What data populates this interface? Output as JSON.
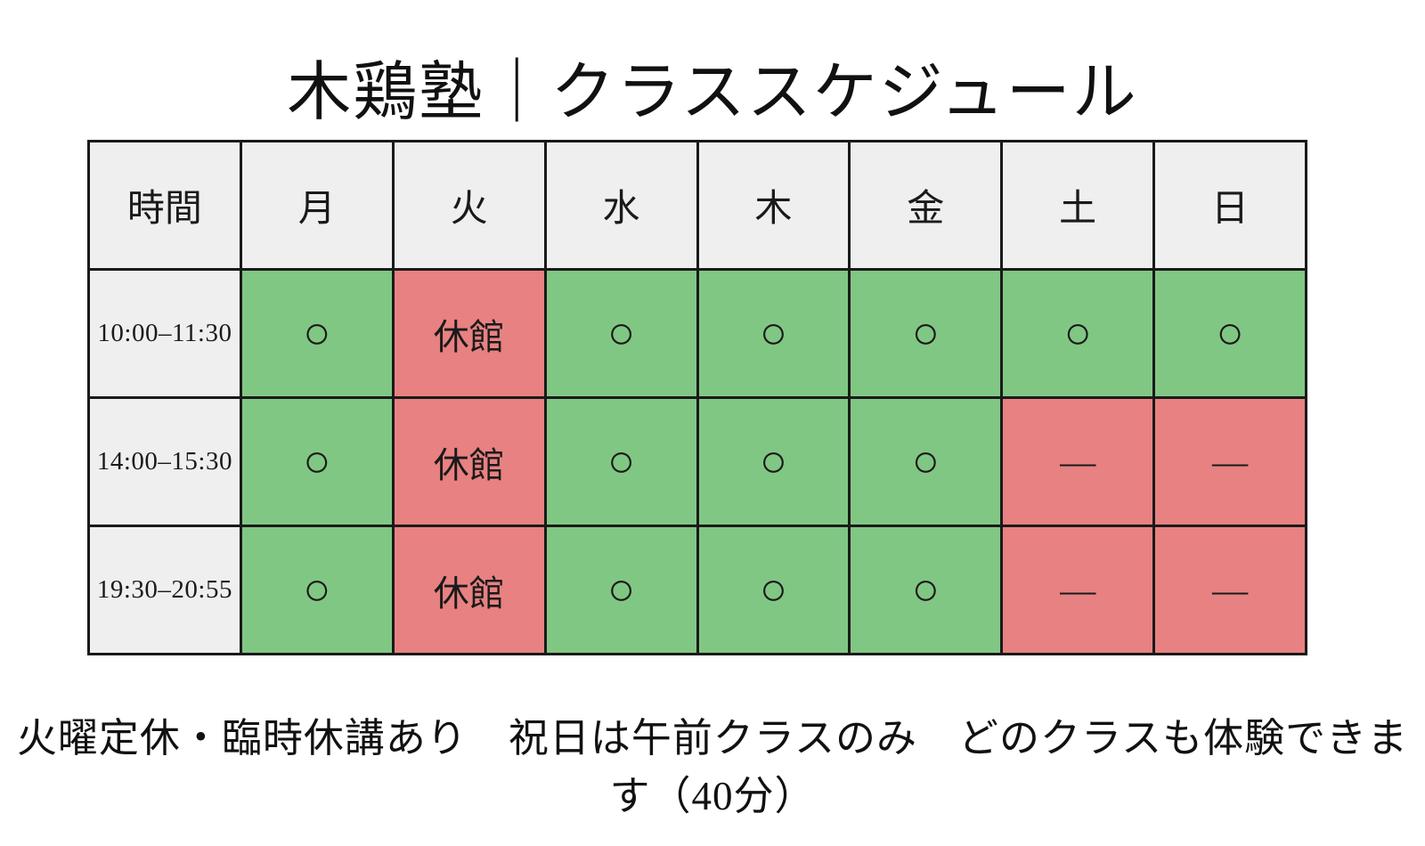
{
  "page": {
    "title": "木鶏塾｜クラススケジュール",
    "footnote": "火曜定休・臨時休講あり　祝日は午前クラスのみ　どのクラスも体験できます（40分）"
  },
  "colors": {
    "open": "#81c784",
    "closed": "#e88181",
    "header_bg": "#efefef",
    "border": "#1a1a1a"
  },
  "legend_semantics": {
    "open_symbol": "○",
    "closed_label": "休館",
    "no_class_symbol": "—"
  },
  "schedule": {
    "columns": [
      "時間",
      "月",
      "火",
      "水",
      "木",
      "金",
      "土",
      "日"
    ],
    "rows": [
      {
        "time": "10:00–11:30",
        "cells": [
          {
            "text": "○",
            "status": "open"
          },
          {
            "text": "休館",
            "status": "closed"
          },
          {
            "text": "○",
            "status": "open"
          },
          {
            "text": "○",
            "status": "open"
          },
          {
            "text": "○",
            "status": "open"
          },
          {
            "text": "○",
            "status": "open"
          },
          {
            "text": "○",
            "status": "open"
          }
        ]
      },
      {
        "time": "14:00–15:30",
        "cells": [
          {
            "text": "○",
            "status": "open"
          },
          {
            "text": "休館",
            "status": "closed"
          },
          {
            "text": "○",
            "status": "open"
          },
          {
            "text": "○",
            "status": "open"
          },
          {
            "text": "○",
            "status": "open"
          },
          {
            "text": "—",
            "status": "none"
          },
          {
            "text": "—",
            "status": "none"
          }
        ]
      },
      {
        "time": "19:30–20:55",
        "cells": [
          {
            "text": "○",
            "status": "open"
          },
          {
            "text": "休館",
            "status": "closed"
          },
          {
            "text": "○",
            "status": "open"
          },
          {
            "text": "○",
            "status": "open"
          },
          {
            "text": "○",
            "status": "open"
          },
          {
            "text": "—",
            "status": "none"
          },
          {
            "text": "—",
            "status": "none"
          }
        ]
      }
    ]
  }
}
